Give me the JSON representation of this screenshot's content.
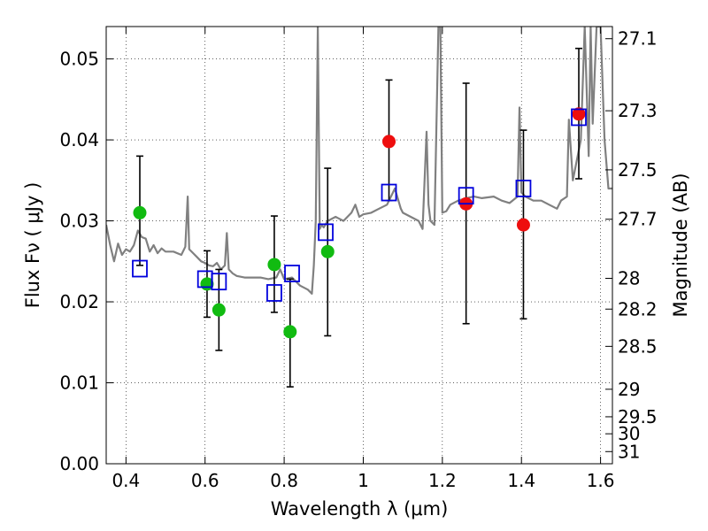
{
  "chart_data": {
    "type": "scatter",
    "xlabel": "Wavelength  λ (μm)",
    "ylabel": "Flux  Fν  ( μJy )",
    "ylabel_right": "Magnitude (AB)",
    "xlim": [
      0.35,
      1.63
    ],
    "ylim": [
      0.0,
      0.054
    ],
    "grid": true,
    "x_ticks": [
      0.4,
      0.6,
      0.8,
      1.0,
      1.2,
      1.4,
      1.6
    ],
    "x_tick_labels": [
      "0.4",
      "0.6",
      "0.8",
      "1",
      "1.2",
      "1.4",
      "1.6"
    ],
    "y_ticks": [
      0.0,
      0.01,
      0.02,
      0.03,
      0.04,
      0.05
    ],
    "y_tick_labels": [
      "0.00",
      "0.01",
      "0.02",
      "0.03",
      "0.04",
      "0.05"
    ],
    "mag_ticks": [
      {
        "label": "27.1",
        "flux": 0.0525
      },
      {
        "label": "27.3",
        "flux": 0.0436
      },
      {
        "label": "27.5",
        "flux": 0.0363
      },
      {
        "label": "27.7",
        "flux": 0.0302
      },
      {
        "label": "28",
        "flux": 0.0229
      },
      {
        "label": "28.2",
        "flux": 0.0191
      },
      {
        "label": "28.5",
        "flux": 0.0145
      },
      {
        "label": "29",
        "flux": 0.0092
      },
      {
        "label": "29.5",
        "flux": 0.0058
      },
      {
        "label": "30",
        "flux": 0.0037
      },
      {
        "label": "31",
        "flux": 0.0015
      }
    ],
    "colors": {
      "model": "#808080",
      "green": "#11bb11",
      "red": "#ee0e0e",
      "blue": "#0000dd",
      "errorbar": "#000000"
    },
    "series": [
      {
        "marker": "line",
        "x": [
          0.35,
          0.36,
          0.37,
          0.38,
          0.39,
          0.4,
          0.41,
          0.42,
          0.43,
          0.44,
          0.45,
          0.46,
          0.47,
          0.48,
          0.49,
          0.5,
          0.52,
          0.54,
          0.55,
          0.556,
          0.56,
          0.57,
          0.58,
          0.59,
          0.6,
          0.61,
          0.62,
          0.63,
          0.64,
          0.65,
          0.655,
          0.66,
          0.67,
          0.68,
          0.7,
          0.72,
          0.74,
          0.76,
          0.78,
          0.79,
          0.8,
          0.82,
          0.84,
          0.86,
          0.87,
          0.875,
          0.88,
          0.885,
          0.89,
          0.895,
          0.9,
          0.91,
          0.93,
          0.95,
          0.97,
          0.98,
          0.99,
          1.0,
          1.02,
          1.04,
          1.06,
          1.08,
          1.095,
          1.1,
          1.12,
          1.14,
          1.15,
          1.16,
          1.165,
          1.17,
          1.18,
          1.19,
          1.195,
          1.2,
          1.21,
          1.22,
          1.24,
          1.26,
          1.28,
          1.3,
          1.33,
          1.35,
          1.37,
          1.39,
          1.395,
          1.4,
          1.41,
          1.43,
          1.45,
          1.47,
          1.49,
          1.5,
          1.515,
          1.52,
          1.53,
          1.55,
          1.56,
          1.57,
          1.575,
          1.58,
          1.59,
          1.6,
          1.61,
          1.62,
          1.63
        ],
        "y": [
          0.0295,
          0.027,
          0.025,
          0.0272,
          0.0258,
          0.0265,
          0.0262,
          0.027,
          0.0288,
          0.028,
          0.0278,
          0.0262,
          0.027,
          0.026,
          0.0266,
          0.0262,
          0.0262,
          0.0258,
          0.0268,
          0.033,
          0.0265,
          0.026,
          0.0255,
          0.025,
          0.0248,
          0.0245,
          0.0244,
          0.0248,
          0.024,
          0.0245,
          0.0285,
          0.024,
          0.0235,
          0.0232,
          0.023,
          0.023,
          0.023,
          0.0228,
          0.023,
          0.024,
          0.0228,
          0.023,
          0.022,
          0.0215,
          0.021,
          0.0245,
          0.03,
          0.054,
          0.029,
          0.0295,
          0.0292,
          0.03,
          0.0305,
          0.03,
          0.031,
          0.032,
          0.0305,
          0.0308,
          0.031,
          0.0315,
          0.032,
          0.034,
          0.0315,
          0.031,
          0.0305,
          0.03,
          0.029,
          0.041,
          0.032,
          0.03,
          0.0295,
          0.054,
          0.054,
          0.031,
          0.0312,
          0.032,
          0.0325,
          0.0328,
          0.033,
          0.0328,
          0.033,
          0.0325,
          0.0322,
          0.033,
          0.044,
          0.0335,
          0.033,
          0.0325,
          0.0325,
          0.032,
          0.0315,
          0.0325,
          0.033,
          0.0425,
          0.035,
          0.04,
          0.054,
          0.038,
          0.054,
          0.042,
          0.054,
          0.054,
          0.04,
          0.034,
          0.034
        ]
      },
      {
        "marker": "circle",
        "color": "green",
        "x": [
          0.435,
          0.605,
          0.635,
          0.775,
          0.815,
          0.91
        ],
        "y": [
          0.031,
          0.0222,
          0.019,
          0.0246,
          0.0163,
          0.0262
        ],
        "err_low": [
          0.0245,
          0.0181,
          0.014,
          0.0187,
          0.0095,
          0.0158
        ],
        "err_high": [
          0.038,
          0.0263,
          0.024,
          0.0306,
          0.0228,
          0.0365
        ]
      },
      {
        "marker": "circle",
        "color": "red",
        "x": [
          1.065,
          1.26,
          1.405,
          1.545
        ],
        "y": [
          0.0398,
          0.0321,
          0.0295,
          0.0432
        ],
        "err_low": [
          0.0325,
          0.0173,
          0.0179,
          0.0352
        ],
        "err_high": [
          0.0474,
          0.047,
          0.0412,
          0.0513
        ]
      },
      {
        "marker": "open-square",
        "color": "blue",
        "x": [
          0.435,
          0.6,
          0.635,
          0.775,
          0.82,
          0.905,
          1.065,
          1.26,
          1.405,
          1.545
        ],
        "y": [
          0.0241,
          0.0228,
          0.0225,
          0.0211,
          0.0235,
          0.0286,
          0.0335,
          0.0331,
          0.034,
          0.0428
        ]
      }
    ]
  }
}
